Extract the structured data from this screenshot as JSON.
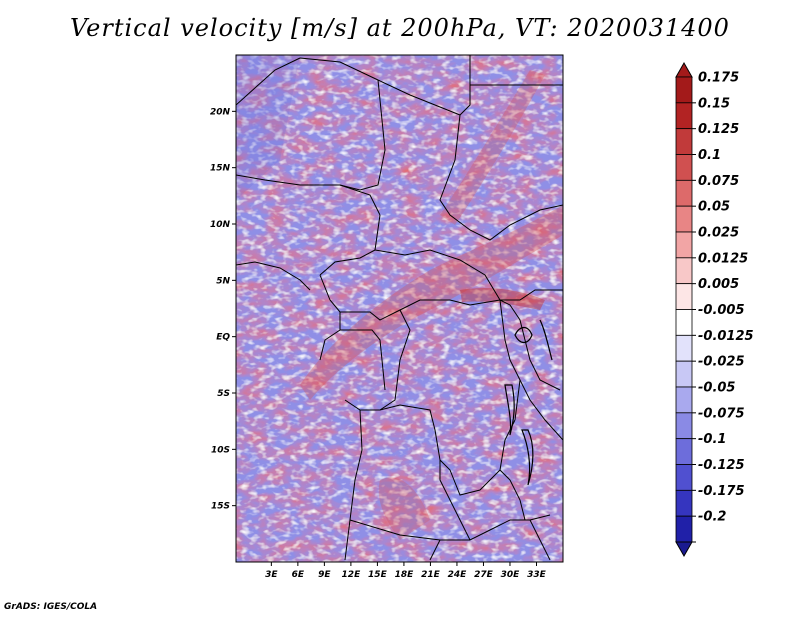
{
  "title": "Vertical velocity [m/s] at 200hPa, VT: 2020031400",
  "credit": "GrADS: IGES/COLA",
  "map": {
    "lon_range": [
      -1,
      36
    ],
    "lat_range": [
      -20,
      25
    ],
    "lat_ticks": [
      {
        "value": 20,
        "label": "20N"
      },
      {
        "value": 15,
        "label": "15N"
      },
      {
        "value": 10,
        "label": "10N"
      },
      {
        "value": 5,
        "label": "5N"
      },
      {
        "value": 0,
        "label": "EQ"
      },
      {
        "value": -5,
        "label": "5S"
      },
      {
        "value": -10,
        "label": "10S"
      },
      {
        "value": -15,
        "label": "15S"
      }
    ],
    "lon_ticks": [
      {
        "value": 3,
        "label": "3E"
      },
      {
        "value": 6,
        "label": "6E"
      },
      {
        "value": 9,
        "label": "9E"
      },
      {
        "value": 12,
        "label": "12E"
      },
      {
        "value": 15,
        "label": "15E"
      },
      {
        "value": 18,
        "label": "18E"
      },
      {
        "value": 21,
        "label": "21E"
      },
      {
        "value": 24,
        "label": "24E"
      },
      {
        "value": 27,
        "label": "27E"
      },
      {
        "value": 30,
        "label": "30E"
      },
      {
        "value": 33,
        "label": "33E"
      }
    ]
  },
  "colorbar": {
    "levels": [
      {
        "label": "0.175",
        "color": "#a31a1a"
      },
      {
        "label": "0.15",
        "color": "#b22323"
      },
      {
        "label": "0.125",
        "color": "#c13a3a"
      },
      {
        "label": "0.1",
        "color": "#d05050"
      },
      {
        "label": "0.075",
        "color": "#dd6a6a"
      },
      {
        "label": "0.05",
        "color": "#e88585"
      },
      {
        "label": "0.025",
        "color": "#f2a5a5"
      },
      {
        "label": "0.0125",
        "color": "#f8c8c8"
      },
      {
        "label": "0.005",
        "color": "#fde6e6"
      },
      {
        "label": "-0.005",
        "color": "#ffffff"
      },
      {
        "label": "-0.0125",
        "color": "#e2e2fb"
      },
      {
        "label": "-0.025",
        "color": "#c8c8f5"
      },
      {
        "label": "-0.05",
        "color": "#a9a9ee"
      },
      {
        "label": "-0.075",
        "color": "#8a8ae5"
      },
      {
        "label": "-0.1",
        "color": "#6d6ddb"
      },
      {
        "label": "-0.125",
        "color": "#5050d0"
      },
      {
        "label": "-0.175",
        "color": "#3535bf"
      },
      {
        "label": "-0.2",
        "color": "#2020a8"
      }
    ],
    "top_arrow_color": "#a31a1a",
    "bottom_arrow_color": "#1a1a90"
  },
  "colors": {
    "positive": "#e06868",
    "negative": "#7c7ce0",
    "background": "#ffffff",
    "border": "#000000"
  }
}
